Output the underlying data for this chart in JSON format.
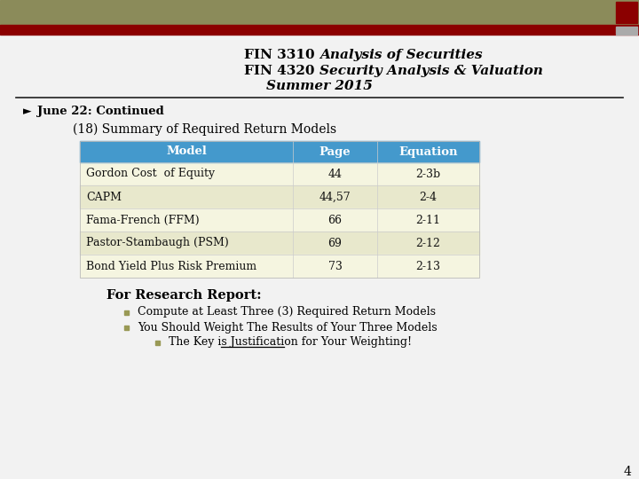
{
  "title_line1_normal": "FIN 3310 ",
  "title_line1_italic": "Analysis of Securities",
  "title_line2_normal": "FIN 4320 ",
  "title_line2_italic": "Security Analysis & Valuation",
  "title_line3": "Summer 2015",
  "header_bg_color": "#8B8B5A",
  "header_bar_color": "#8B0000",
  "header_sq_color": "#8B0000",
  "header_sq2_color": "#aaaaaa",
  "bg_color": "#f2f2f2",
  "separator_color": "#222222",
  "bullet_arrow": "►",
  "bullet_label": "June 22: Continued",
  "section_title": "(18) Summary of Required Return Models",
  "table_header": [
    "Model",
    "Page",
    "Equation"
  ],
  "table_header_bg": "#4499cc",
  "table_header_text": "#ffffff",
  "table_rows": [
    [
      "Gordon Cost  of Equity",
      "44",
      "2-3b"
    ],
    [
      "CAPM",
      "44,57",
      "2-4"
    ],
    [
      "Fama-French (FFM)",
      "66",
      "2-11"
    ],
    [
      "Pastor-Stambaugh (PSM)",
      "69",
      "2-12"
    ],
    [
      "Bond Yield Plus Risk Premium",
      "73",
      "2-13"
    ]
  ],
  "table_row_colors": [
    "#f5f5e0",
    "#e8e8cc"
  ],
  "table_text_color": "#111111",
  "research_title": "For Research Report:",
  "bullet1": "Compute at Least Three (3) Required Return Models",
  "bullet2": "You Should Weight The Results of Your Three Models",
  "bullet3_pre": "The Key is ",
  "bullet3_underline": "Justification",
  "bullet3_post": " for Your Weighting!",
  "bullet_sq_color": "#999955",
  "page_number": "4"
}
